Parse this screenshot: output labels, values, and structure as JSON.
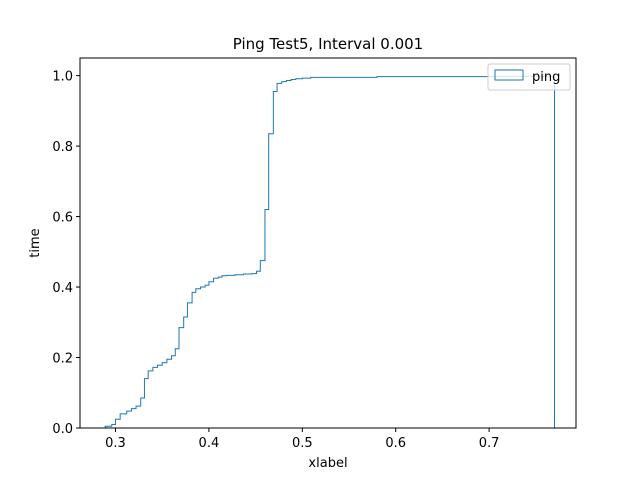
{
  "chart_data": {
    "type": "step",
    "title": "Ping Test5, Interval 0.001",
    "xlabel": "xlabel",
    "ylabel": "time",
    "xlim": [
      0.262,
      0.793
    ],
    "ylim": [
      0.0,
      1.05
    ],
    "xticks": [
      {
        "value": 0.3,
        "label": "0.3"
      },
      {
        "value": 0.4,
        "label": "0.4"
      },
      {
        "value": 0.5,
        "label": "0.5"
      },
      {
        "value": 0.6,
        "label": "0.6"
      },
      {
        "value": 0.7,
        "label": "0.7"
      }
    ],
    "yticks": [
      {
        "value": 0.0,
        "label": "0.0"
      },
      {
        "value": 0.2,
        "label": "0.2"
      },
      {
        "value": 0.4,
        "label": "0.4"
      },
      {
        "value": 0.6,
        "label": "0.6"
      },
      {
        "value": 0.8,
        "label": "0.8"
      },
      {
        "value": 1.0,
        "label": "1.0"
      }
    ],
    "grid": false,
    "legend": {
      "position": "upper-right",
      "entries": [
        "ping"
      ]
    },
    "series": [
      {
        "name": "ping",
        "color": "#1f77b4",
        "style": "cumulative step histogram",
        "points": [
          [
            0.284,
            0.0
          ],
          [
            0.289,
            0.005
          ],
          [
            0.296,
            0.01
          ],
          [
            0.3,
            0.025
          ],
          [
            0.305,
            0.04
          ],
          [
            0.312,
            0.048
          ],
          [
            0.317,
            0.055
          ],
          [
            0.322,
            0.062
          ],
          [
            0.327,
            0.085
          ],
          [
            0.331,
            0.14
          ],
          [
            0.335,
            0.162
          ],
          [
            0.34,
            0.172
          ],
          [
            0.345,
            0.178
          ],
          [
            0.35,
            0.185
          ],
          [
            0.355,
            0.195
          ],
          [
            0.36,
            0.205
          ],
          [
            0.364,
            0.225
          ],
          [
            0.368,
            0.285
          ],
          [
            0.373,
            0.315
          ],
          [
            0.377,
            0.355
          ],
          [
            0.382,
            0.385
          ],
          [
            0.386,
            0.395
          ],
          [
            0.391,
            0.4
          ],
          [
            0.396,
            0.405
          ],
          [
            0.4,
            0.415
          ],
          [
            0.405,
            0.425
          ],
          [
            0.41,
            0.428
          ],
          [
            0.414,
            0.432
          ],
          [
            0.419,
            0.433
          ],
          [
            0.428,
            0.435
          ],
          [
            0.437,
            0.437
          ],
          [
            0.446,
            0.438
          ],
          [
            0.451,
            0.445
          ],
          [
            0.455,
            0.475
          ],
          [
            0.46,
            0.62
          ],
          [
            0.464,
            0.835
          ],
          [
            0.469,
            0.955
          ],
          [
            0.473,
            0.978
          ],
          [
            0.478,
            0.983
          ],
          [
            0.483,
            0.986
          ],
          [
            0.488,
            0.989
          ],
          [
            0.493,
            0.991
          ],
          [
            0.5,
            0.993
          ],
          [
            0.509,
            0.995
          ],
          [
            0.58,
            0.997
          ],
          [
            0.7,
            0.998
          ],
          [
            0.77,
            0.998
          ]
        ],
        "end_x": 0.77
      }
    ]
  }
}
